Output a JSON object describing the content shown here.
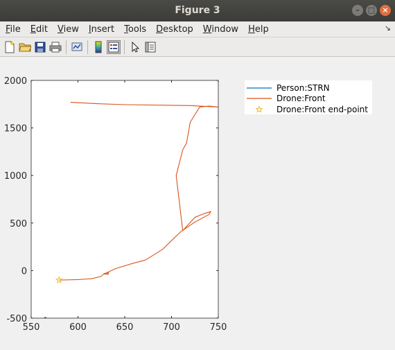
{
  "window": {
    "title": "Figure 3",
    "buttons": [
      "minimize",
      "maximize",
      "close"
    ]
  },
  "menubar": {
    "items": [
      {
        "label": "File",
        "mnemonic": "F"
      },
      {
        "label": "Edit",
        "mnemonic": "E"
      },
      {
        "label": "View",
        "mnemonic": "V"
      },
      {
        "label": "Insert",
        "mnemonic": "I"
      },
      {
        "label": "Tools",
        "mnemonic": "T"
      },
      {
        "label": "Desktop",
        "mnemonic": "D"
      },
      {
        "label": "Window",
        "mnemonic": "W"
      },
      {
        "label": "Help",
        "mnemonic": "H"
      }
    ]
  },
  "toolbar": {
    "icons": [
      "new-figure-icon",
      "open-file-icon",
      "save-icon",
      "print-icon",
      "link-plot-icon",
      "insert-colorbar-icon",
      "insert-legend-icon",
      "edit-plot-icon",
      "property-inspector-icon"
    ],
    "active": "insert-legend-icon"
  },
  "chart_data": {
    "type": "line",
    "title": "",
    "xlabel": "",
    "ylabel": "",
    "xlim": [
      550,
      750
    ],
    "ylim": [
      -500,
      2000
    ],
    "xticks": [
      "550",
      "600",
      "650",
      "700",
      "750"
    ],
    "yticks": [
      "-500",
      "0",
      "500",
      "1000",
      "1500",
      "2000"
    ],
    "grid": false,
    "legend_position": "top-right-outside",
    "series": [
      {
        "name": "Person:STRN",
        "color": "#0072bd",
        "points": [
          [
            564,
            -497
          ],
          [
            566,
            -495
          ]
        ]
      },
      {
        "name": "Drone:Front",
        "color": "#d95319",
        "points": [
          [
            580,
            -100
          ],
          [
            600,
            -95
          ],
          [
            615,
            -85
          ],
          [
            625,
            -60
          ],
          [
            628,
            -30
          ],
          [
            633,
            -25
          ],
          [
            632,
            -40
          ],
          [
            628,
            -35
          ],
          [
            640,
            20
          ],
          [
            660,
            80
          ],
          [
            672,
            110
          ],
          [
            690,
            220
          ],
          [
            710,
            410
          ],
          [
            725,
            510
          ],
          [
            740,
            590
          ],
          [
            742,
            620
          ],
          [
            735,
            600
          ],
          [
            725,
            560
          ],
          [
            712,
            420
          ],
          [
            705,
            1000
          ],
          [
            712,
            1270
          ],
          [
            716,
            1340
          ],
          [
            720,
            1560
          ],
          [
            730,
            1720
          ],
          [
            740,
            1730
          ],
          [
            750,
            1720
          ],
          [
            720,
            1735
          ],
          [
            650,
            1745
          ],
          [
            620,
            1755
          ],
          [
            592,
            1770
          ]
        ]
      },
      {
        "name": "Drone:Front end-point",
        "color": "#edb120",
        "marker": "pentagram",
        "points": [
          [
            580,
            -100
          ]
        ]
      }
    ]
  }
}
